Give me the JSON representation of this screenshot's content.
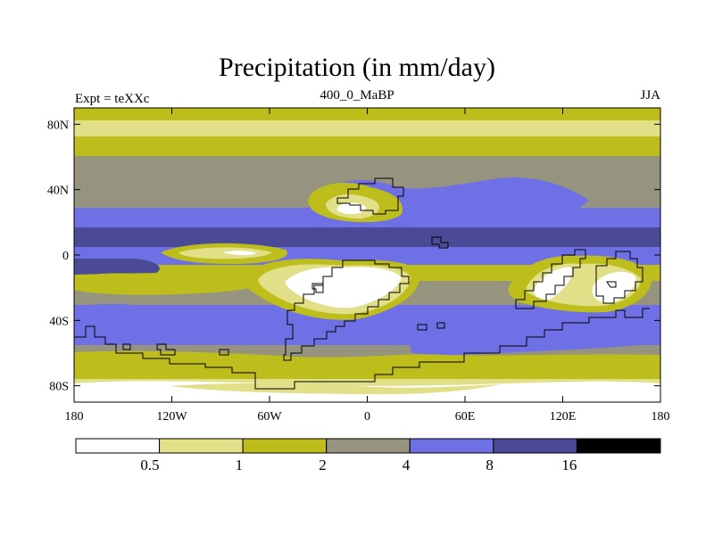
{
  "title": "Precipitation (in mm/day)",
  "left_label": "Expt = teXXc",
  "center_label": "400_0_MaBP",
  "right_label": "JJA",
  "colors": {
    "band_0": "#ffffff",
    "band_1": "#e1df88",
    "band_2": "#bdbd1b",
    "band_3": "#96937e",
    "band_4": "#7070e6",
    "band_5": "#4a4a96",
    "band_6": "#000000",
    "frame": "#000000"
  },
  "chart_data": {
    "type": "map-contour",
    "title": "Precipitation (in mm/day)",
    "variable": "Precipitation",
    "units": "mm/day",
    "experiment": "teXXc",
    "period": "400_0_MaBP",
    "season": "JJA",
    "lon_range": [
      -180,
      180
    ],
    "lat_range": [
      -90,
      90
    ],
    "x_ticks": [
      {
        "value": -180,
        "label": "180"
      },
      {
        "value": -120,
        "label": "120W"
      },
      {
        "value": -60,
        "label": "60W"
      },
      {
        "value": 0,
        "label": "0"
      },
      {
        "value": 60,
        "label": "60E"
      },
      {
        "value": 120,
        "label": "120E"
      },
      {
        "value": 180,
        "label": "180"
      }
    ],
    "y_ticks": [
      {
        "value": 80,
        "label": "80N"
      },
      {
        "value": 40,
        "label": "40N"
      },
      {
        "value": 0,
        "label": "0"
      },
      {
        "value": -40,
        "label": "40S"
      },
      {
        "value": -80,
        "label": "80S"
      }
    ],
    "colorbar": {
      "levels": [
        0.5,
        1,
        2,
        4,
        8,
        16
      ],
      "labels": [
        "0.5",
        "1",
        "2",
        "4",
        "8",
        "16"
      ]
    }
  }
}
